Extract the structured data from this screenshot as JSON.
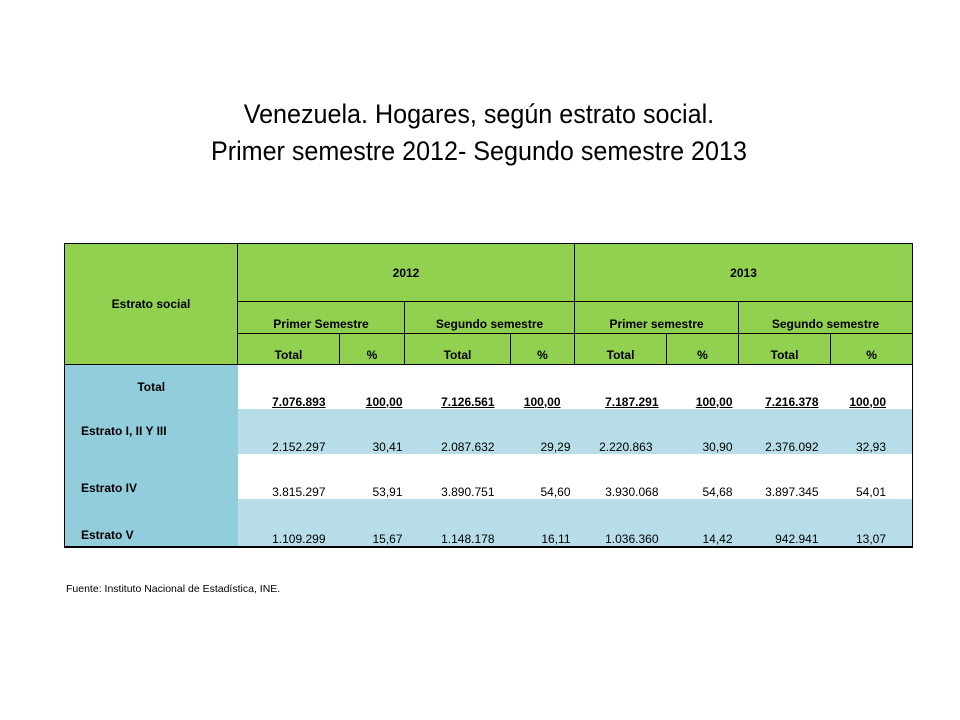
{
  "title": {
    "line1": "Venezuela. Hogares, según estrato social.",
    "line2": "Primer semestre 2012- Segundo semestre 2013"
  },
  "table": {
    "header": {
      "row_label": "Estrato social",
      "years": [
        "2012",
        "2013"
      ],
      "semesters": [
        "Primer Semestre",
        "Segundo semestre",
        "Primer semestre",
        "Segundo semestre"
      ],
      "total_label": "Total",
      "pct_label": "%"
    },
    "rows": [
      {
        "label": "Total",
        "values": [
          "7.076.893",
          "100,00",
          "7.126.561",
          "100,00",
          "7.187.291",
          "100,00",
          "7.216.378",
          "100,00"
        ]
      },
      {
        "label": "Estrato I, II Y III",
        "values": [
          "2.152.297",
          "30,41",
          "2.087.632",
          "29,29",
          "2.220.863",
          "30,90",
          "2.376.092",
          "32,93"
        ]
      },
      {
        "label": "Estrato IV",
        "values": [
          "3.815.297",
          "53,91",
          "3.890.751",
          "54,60",
          "3.930.068",
          "54,68",
          "3.897.345",
          "54,01"
        ]
      },
      {
        "label": "Estrato V",
        "values": [
          "1.109.299",
          "15,67",
          "1.148.178",
          "16,11",
          "1.036.360",
          "14,42",
          "942.941",
          "13,07"
        ]
      }
    ]
  },
  "source": "Fuente: Instituto Nacional de Estadística, INE.",
  "colors": {
    "header_green": "#92d050",
    "label_blue": "#92cddc",
    "row_light_blue": "#b7dee8"
  }
}
